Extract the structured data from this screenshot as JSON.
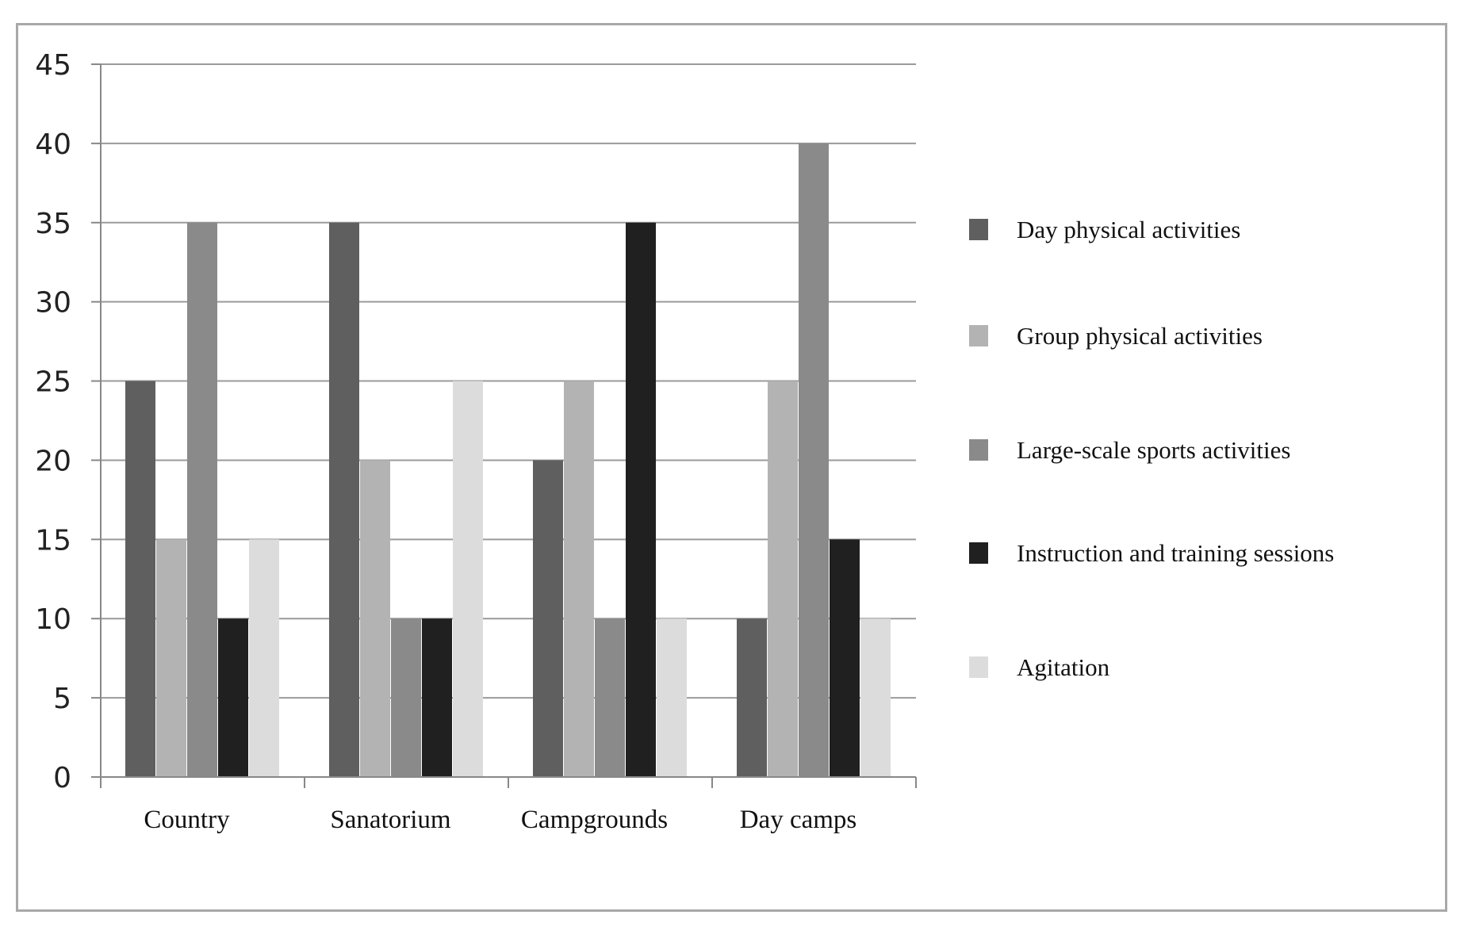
{
  "chart_data": {
    "type": "bar",
    "title": "",
    "xlabel": "",
    "ylabel": "",
    "ylim": [
      0,
      45
    ],
    "yticks": [
      0,
      5,
      10,
      15,
      20,
      25,
      30,
      35,
      40,
      45
    ],
    "grid": true,
    "legend_position": "right",
    "categories": [
      "Country",
      "Sanatorium",
      "Campgrounds",
      "Day camps"
    ],
    "series": [
      {
        "name": "Day physical activities",
        "color": "#5f5f5f",
        "values": [
          25,
          35,
          20,
          10
        ]
      },
      {
        "name": "Group physical activities",
        "color": "#b3b3b3",
        "values": [
          15,
          20,
          25,
          25
        ]
      },
      {
        "name": "Large-scale sports activities",
        "color": "#8a8a8a",
        "values": [
          35,
          10,
          10,
          40
        ]
      },
      {
        "name": "Instruction and training sessions",
        "color": "#202020",
        "values": [
          10,
          10,
          35,
          15
        ]
      },
      {
        "name": "Agitation",
        "color": "#dcdcdc",
        "values": [
          15,
          25,
          10,
          10
        ]
      }
    ]
  }
}
